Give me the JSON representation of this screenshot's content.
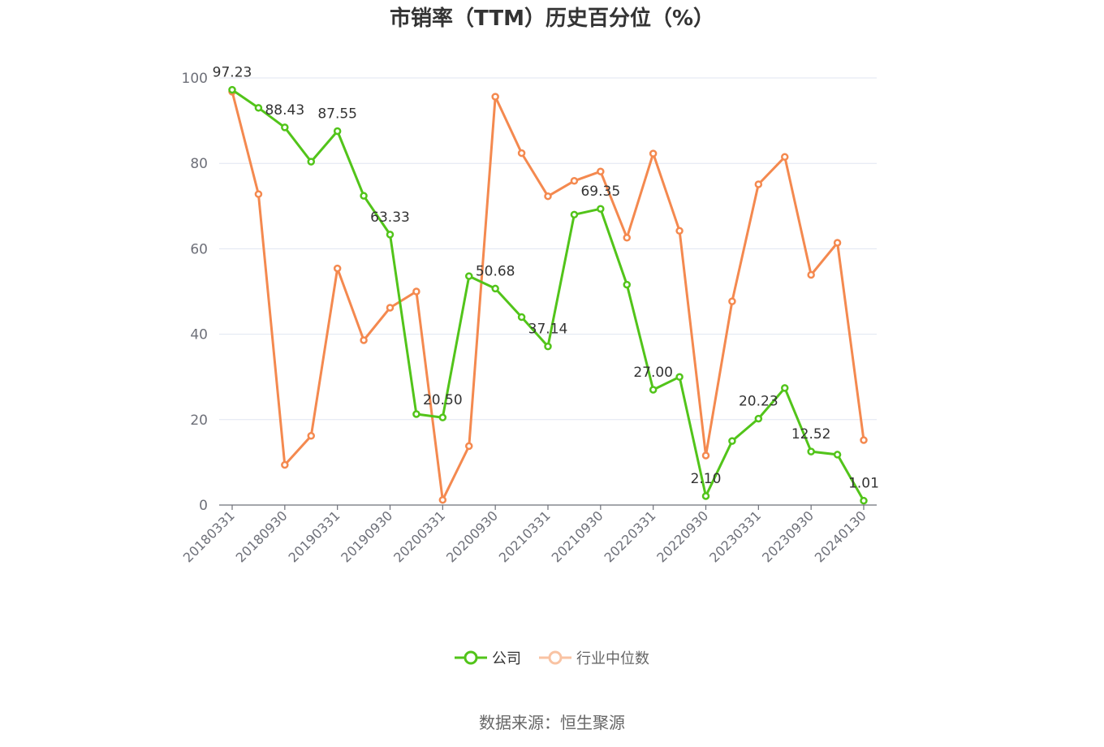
{
  "chart_data": {
    "type": "line",
    "title": "市销率（TTM）历史百分位（%）",
    "ylim": [
      0,
      100
    ],
    "yticks": [
      0,
      20,
      40,
      60,
      80,
      100
    ],
    "grid": true,
    "legend_position": "bottom",
    "x": [
      "20180331",
      "20180630",
      "20180930",
      "20181231",
      "20190331",
      "20190630",
      "20190930",
      "20191231",
      "20200331",
      "20200630",
      "20200930",
      "20201231",
      "20210331",
      "20210630",
      "20210930",
      "20211231",
      "20220331",
      "20220630",
      "20220930",
      "20221231",
      "20230331",
      "20230630",
      "20230930",
      "20231231",
      "20240130"
    ],
    "xtick_labels": [
      "20180331",
      "20180930",
      "20190331",
      "20190930",
      "20200331",
      "20200930",
      "20210331",
      "20210930",
      "20220331",
      "20220930",
      "20230331",
      "20230930",
      "20240130"
    ],
    "series": [
      {
        "name": "公司",
        "color": "#52c41a",
        "values": [
          97.23,
          93.0,
          88.43,
          80.4,
          87.55,
          72.4,
          63.33,
          21.3,
          20.5,
          53.6,
          50.68,
          44.0,
          37.14,
          68.0,
          69.35,
          51.6,
          27.0,
          30.0,
          2.1,
          15.0,
          20.23,
          27.4,
          12.52,
          11.8,
          1.01
        ],
        "labels": {
          "0": "97.23",
          "2": "88.43",
          "4": "87.55",
          "6": "63.33",
          "8": "20.50",
          "10": "50.68",
          "12": "37.14",
          "14": "69.35",
          "16": "27.00",
          "18": "2.10",
          "20": "20.23",
          "22": "12.52",
          "24": "1.01"
        }
      },
      {
        "name": "行业中位数",
        "color": "#f4894f",
        "values": [
          96.8,
          72.8,
          9.4,
          16.2,
          55.4,
          38.6,
          46.2,
          50.0,
          1.2,
          13.8,
          95.6,
          82.4,
          72.3,
          75.9,
          78.1,
          62.6,
          82.3,
          64.2,
          11.6,
          47.7,
          75.1,
          81.5,
          53.9,
          61.4,
          15.2
        ]
      }
    ],
    "source": "数据来源：恒生聚源"
  }
}
